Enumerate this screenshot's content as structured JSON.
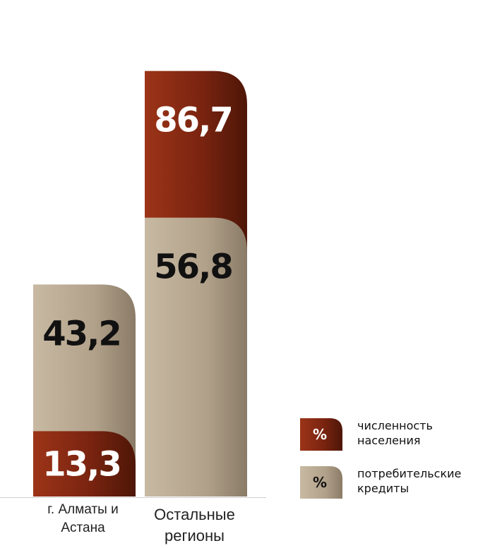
{
  "chart_data": {
    "type": "bar",
    "categories": [
      "г. Алматы и Астана",
      "Остальные регионы"
    ],
    "category_lines": [
      [
        "г. Алматы и",
        "Астана"
      ],
      [
        "Остальные",
        "регионы"
      ]
    ],
    "series": [
      {
        "name": "численность населения",
        "values": [
          13.3,
          86.7
        ],
        "labels": [
          "13,3",
          "86,7"
        ],
        "color": "#8b2a14"
      },
      {
        "name": "потребительские кредиты",
        "values": [
          43.2,
          56.8
        ],
        "labels": [
          "43,2",
          "56,8"
        ],
        "color": "#b9a892"
      }
    ],
    "ylim": [
      0,
      100
    ],
    "grid": false,
    "legend_position": "bottom-right",
    "legend_symbol": "%",
    "legend": [
      {
        "lines": [
          "численность",
          "населения"
        ],
        "symbol": "%",
        "color": "#8b2a14"
      },
      {
        "lines": [
          "потребительские",
          "кредиты"
        ],
        "symbol": "%",
        "color": "#b9a892"
      }
    ]
  }
}
